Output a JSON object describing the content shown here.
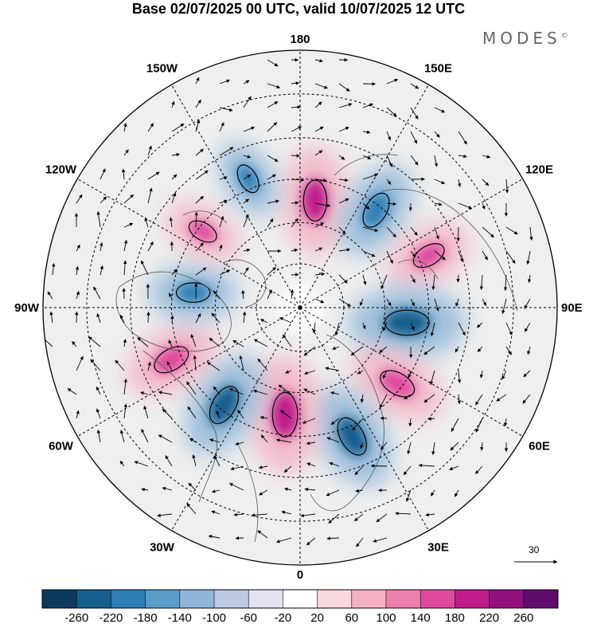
{
  "title": "Base 02/07/2025 00 UTC, valid 10/07/2025 12 UTC",
  "brand": "MODES",
  "brand_mark": "©",
  "longitude_labels": [
    {
      "id": "lon-180",
      "text": "180"
    },
    {
      "id": "lon-150e",
      "text": "150E"
    },
    {
      "id": "lon-120e",
      "text": "120E"
    },
    {
      "id": "lon-90e",
      "text": "90E"
    },
    {
      "id": "lon-60e",
      "text": "60E"
    },
    {
      "id": "lon-30e",
      "text": "30E"
    },
    {
      "id": "lon-0",
      "text": "0"
    },
    {
      "id": "lon-30w",
      "text": "30W"
    },
    {
      "id": "lon-60w",
      "text": "60W"
    },
    {
      "id": "lon-90w",
      "text": "90W"
    },
    {
      "id": "lon-120w",
      "text": "120W"
    },
    {
      "id": "lon-150w",
      "text": "150W"
    }
  ],
  "vector_scale_label": "30",
  "colorbar": {
    "ticks": [
      "-260",
      "-220",
      "-180",
      "-140",
      "-100",
      "-60",
      "-20",
      "20",
      "60",
      "100",
      "140",
      "180",
      "220",
      "260"
    ],
    "colors": [
      "#0d3a5c",
      "#155f8f",
      "#2f7fb5",
      "#5a9dc8",
      "#8fb6d8",
      "#bdc8e3",
      "#e4e2f0",
      "#ffffff",
      "#f8d8dc",
      "#f3b2c3",
      "#ec80ac",
      "#de4a9d",
      "#c01d8b",
      "#93117d",
      "#5f0c6e"
    ]
  },
  "anomaly_centers": [
    {
      "sign": "positive",
      "level": 0.8
    },
    {
      "sign": "negative",
      "level": 0.7
    },
    {
      "sign": "positive",
      "level": 0.6
    },
    {
      "sign": "negative",
      "level": 0.9
    },
    {
      "sign": "positive",
      "level": 0.7
    },
    {
      "sign": "negative",
      "level": 0.8
    },
    {
      "sign": "positive",
      "level": 0.9
    },
    {
      "sign": "negative",
      "level": 0.8
    },
    {
      "sign": "positive",
      "level": 0.7
    },
    {
      "sign": "negative",
      "level": 0.6
    },
    {
      "sign": "positive",
      "level": 0.5
    },
    {
      "sign": "negative",
      "level": 0.5
    }
  ]
}
